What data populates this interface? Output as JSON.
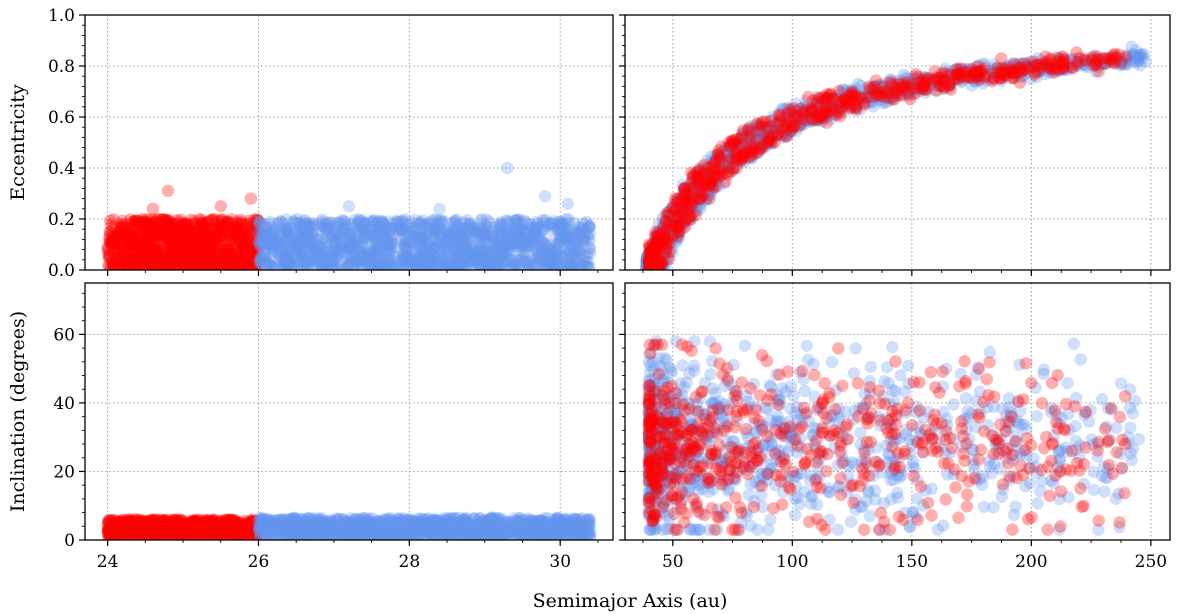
{
  "chart_data": {
    "type": "scatter",
    "xlabel": "Semimajor Axis (au)",
    "colors": {
      "red": "#ff0000",
      "blue": "#6495ed"
    },
    "panels": [
      {
        "id": "top-left",
        "ylabel": "Eccentricity",
        "xlim": [
          23.7,
          30.7
        ],
        "ylim": [
          0,
          1.0
        ],
        "xticks": [
          24,
          26,
          28,
          30
        ],
        "xtick_labels": [],
        "yticks": [
          0.0,
          0.2,
          0.4,
          0.6,
          0.8,
          1.0
        ],
        "ytick_labels": [
          "0.0",
          "0.2",
          "0.4",
          "0.6",
          "0.8",
          "1.0"
        ],
        "series": [
          {
            "color": "red",
            "region": {
              "x": [
                24.0,
                26.0
              ],
              "y": [
                0.0,
                0.2
              ],
              "count": 950
            },
            "extra": [
              [
                24.8,
                0.31
              ],
              [
                25.9,
                0.28
              ],
              [
                24.6,
                0.24
              ],
              [
                25.5,
                0.25
              ]
            ]
          },
          {
            "color": "blue",
            "region": {
              "x": [
                26.0,
                30.4
              ],
              "y": [
                0.0,
                0.2
              ],
              "count": 1400
            },
            "extra": [
              [
                29.3,
                0.4
              ],
              [
                29.8,
                0.29
              ],
              [
                27.2,
                0.25
              ],
              [
                28.4,
                0.24
              ],
              [
                30.1,
                0.26
              ]
            ]
          }
        ]
      },
      {
        "id": "top-right",
        "ylabel": "",
        "xlim": [
          30,
          258
        ],
        "ylim": [
          0,
          1.0
        ],
        "xticks": [
          50,
          100,
          150,
          200,
          250
        ],
        "xtick_labels": [],
        "yticks": [
          0.0,
          0.2,
          0.4,
          0.6,
          0.8,
          1.0
        ],
        "ytick_labels": [],
        "series": [
          {
            "color": "blue",
            "curve": {
              "x": [
                39,
                248
              ],
              "count": 1100
            }
          },
          {
            "color": "red",
            "curve": {
              "x": [
                40,
                240
              ],
              "count": 650
            }
          }
        ]
      },
      {
        "id": "bottom-left",
        "ylabel": "Inclination (degrees)",
        "xlim": [
          23.7,
          30.7
        ],
        "ylim": [
          0,
          75
        ],
        "xticks": [
          24,
          26,
          28,
          30
        ],
        "xtick_labels": [
          "24",
          "26",
          "28",
          "30"
        ],
        "yticks": [
          0,
          20,
          40,
          60
        ],
        "ytick_labels": [
          "0",
          "20",
          "40",
          "60"
        ],
        "series": [
          {
            "color": "red",
            "region": {
              "x": [
                24.0,
                26.0
              ],
              "y": [
                0.5,
                6
              ],
              "count": 900
            }
          },
          {
            "color": "blue",
            "region": {
              "x": [
                26.0,
                30.4
              ],
              "y": [
                0.5,
                6.5
              ],
              "count": 1300
            }
          }
        ]
      },
      {
        "id": "bottom-right",
        "ylabel": "",
        "xlim": [
          30,
          258
        ],
        "ylim": [
          0,
          75
        ],
        "xticks": [
          50,
          100,
          150,
          200,
          250
        ],
        "xtick_labels": [
          "50",
          "100",
          "150",
          "200",
          "250"
        ],
        "yticks": [
          0,
          20,
          40,
          60
        ],
        "ytick_labels": [],
        "series": [
          {
            "color": "blue",
            "spread": {
              "x": [
                40,
                245
              ],
              "y": [
                3,
                58
              ],
              "count": 900
            }
          },
          {
            "color": "red",
            "spread": {
              "x": [
                40,
                240
              ],
              "y": [
                3,
                57
              ],
              "count": 600
            }
          }
        ]
      }
    ]
  }
}
